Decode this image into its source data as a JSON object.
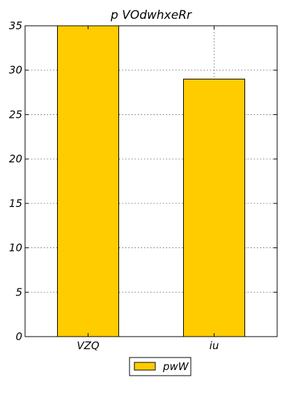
{
  "chart_data": {
    "type": "bar",
    "title": "p  VOdwhxeRr",
    "categories": [
      "VZQ",
      "iu"
    ],
    "series": [
      {
        "name": "pwW",
        "values": [
          35,
          29
        ],
        "color": "#ffcc00"
      }
    ],
    "xlabel": "",
    "ylabel": "",
    "ylim": [
      0,
      35
    ],
    "yticks": [
      0,
      5,
      10,
      15,
      20,
      25,
      30,
      35
    ],
    "grid": true,
    "legend_position": "bottom-center"
  }
}
